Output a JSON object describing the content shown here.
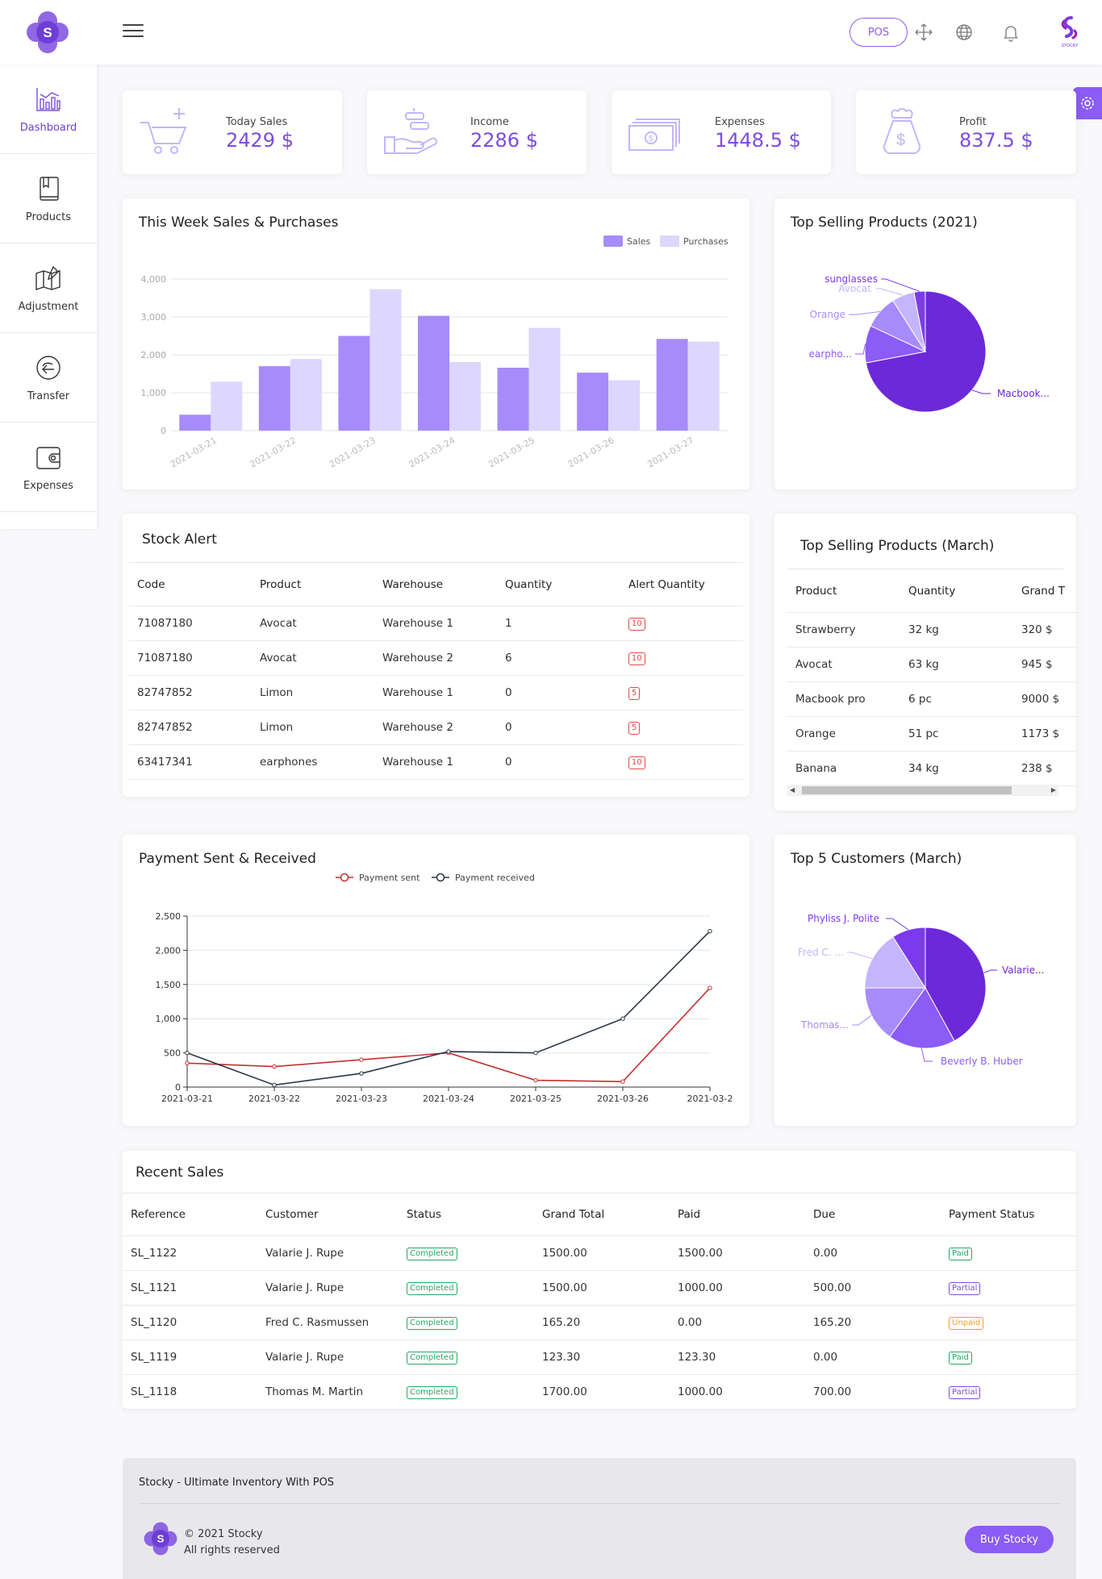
{
  "header": {
    "logo_letter": "S",
    "pos_label": "POS",
    "user_logo_text": "STOCKY"
  },
  "sidebar": {
    "items": [
      {
        "label": "Dashboard",
        "icon": "bar-chart-icon",
        "active": true
      },
      {
        "label": "Products",
        "icon": "book-icon",
        "active": false
      },
      {
        "label": "Adjustment",
        "icon": "map-pencil-icon",
        "active": false
      },
      {
        "label": "Transfer",
        "icon": "transfer-arrow-icon",
        "active": false
      },
      {
        "label": "Expenses",
        "icon": "wallet-icon",
        "active": false
      }
    ]
  },
  "stats": [
    {
      "label": "Today Sales",
      "value": "2429 $",
      "icon": "cart-icon"
    },
    {
      "label": "Income",
      "value": "2286 $",
      "icon": "hand-money-icon"
    },
    {
      "label": "Expenses",
      "value": "1448.5 $",
      "icon": "banknotes-icon"
    },
    {
      "label": "Profit",
      "value": "837.5 $",
      "icon": "money-bag-icon"
    }
  ],
  "week_sales": {
    "title": "This Week Sales & Purchases"
  },
  "top_selling_year": {
    "title": "Top Selling Products (2021)"
  },
  "stock_alert": {
    "title": "Stock Alert",
    "columns": [
      "Code",
      "Product",
      "Warehouse",
      "Quantity",
      "Alert Quantity"
    ],
    "rows": [
      [
        "71087180",
        "Avocat",
        "Warehouse 1",
        "1",
        "10"
      ],
      [
        "71087180",
        "Avocat",
        "Warehouse 2",
        "6",
        "10"
      ],
      [
        "82747852",
        "Limon",
        "Warehouse 1",
        "0",
        "5"
      ],
      [
        "82747852",
        "Limon",
        "Warehouse 2",
        "0",
        "5"
      ],
      [
        "63417341",
        "earphones",
        "Warehouse 1",
        "0",
        "10"
      ]
    ]
  },
  "top_selling_month": {
    "title": "Top Selling Products (March)",
    "columns": [
      "Product",
      "Quantity",
      "Grand T"
    ],
    "rows": [
      [
        "Strawberry",
        "32 kg",
        "320 $"
      ],
      [
        "Avocat",
        "63 kg",
        "945 $"
      ],
      [
        "Macbook pro",
        "6 pc",
        "9000 $"
      ],
      [
        "Orange",
        "51 pc",
        "1173 $"
      ],
      [
        "Banana",
        "34 kg",
        "238 $"
      ]
    ]
  },
  "payments": {
    "title": "Payment Sent & Received"
  },
  "top_customers": {
    "title": "Top 5 Customers (March)"
  },
  "recent_sales": {
    "title": "Recent Sales",
    "columns": [
      "Reference",
      "Customer",
      "Status",
      "Grand Total",
      "Paid",
      "Due",
      "Payment Status"
    ],
    "rows": [
      {
        "ref": "SL_1122",
        "customer": "Valarie J. Rupe",
        "status": "Completed",
        "total": "1500.00",
        "paid": "1500.00",
        "due": "0.00",
        "pstatus": "Paid"
      },
      {
        "ref": "SL_1121",
        "customer": "Valarie J. Rupe",
        "status": "Completed",
        "total": "1500.00",
        "paid": "1000.00",
        "due": "500.00",
        "pstatus": "Partial"
      },
      {
        "ref": "SL_1120",
        "customer": "Fred C. Rasmussen",
        "status": "Completed",
        "total": "165.20",
        "paid": "0.00",
        "due": "165.20",
        "pstatus": "Unpaid"
      },
      {
        "ref": "SL_1119",
        "customer": "Valarie J. Rupe",
        "status": "Completed",
        "total": "123.30",
        "paid": "123.30",
        "due": "0.00",
        "pstatus": "Paid"
      },
      {
        "ref": "SL_1118",
        "customer": "Thomas M. Martin",
        "status": "Completed",
        "total": "1700.00",
        "paid": "1000.00",
        "due": "700.00",
        "pstatus": "Partial"
      }
    ]
  },
  "footer": {
    "title": "Stocky - Ultimate Inventory With POS",
    "copyright": "© 2021 Stocky",
    "rights": "All rights reserved",
    "buy_label": "Buy Stocky"
  },
  "colors": {
    "accent": "#8b5cf6",
    "sales_bar": "#a78bfa",
    "purchases_bar": "#ddd6fe",
    "payment_sent": "#c53030",
    "payment_received": "#2d3748"
  },
  "chart_data": [
    {
      "type": "bar",
      "categories": [
        "2021-03-21",
        "2021-03-22",
        "2021-03-23",
        "2021-03-24",
        "2021-03-25",
        "2021-03-26",
        "2021-03-27"
      ],
      "series": [
        {
          "name": "Sales",
          "values": [
            420,
            1700,
            2500,
            3030,
            1660,
            1530,
            2420
          ]
        },
        {
          "name": "Purchases",
          "values": [
            1290,
            1890,
            3730,
            1810,
            2710,
            1330,
            2350
          ]
        }
      ],
      "yticks": [
        "0",
        "1,000",
        "2,000",
        "3,000",
        "4,000"
      ],
      "ylim": [
        0,
        4000
      ],
      "legend": "top-right",
      "grid": true
    },
    {
      "type": "pie",
      "labels": [
        "Macbook...",
        "earpho...",
        "Orange",
        "Avocat",
        "sunglasses"
      ],
      "values": [
        72,
        10,
        9,
        6,
        3
      ]
    },
    {
      "type": "line",
      "x": [
        "2021-03-21",
        "2021-03-22",
        "2021-03-23",
        "2021-03-24",
        "2021-03-25",
        "2021-03-26",
        "2021-03-2"
      ],
      "series": [
        {
          "name": "Payment sent",
          "values": [
            350,
            300,
            400,
            500,
            100,
            80,
            1450
          ]
        },
        {
          "name": "Payment received",
          "values": [
            500,
            30,
            200,
            520,
            500,
            1000,
            2280
          ]
        }
      ],
      "yticks": [
        "0",
        "500",
        "1,000",
        "1,500",
        "2,000",
        "2,500"
      ],
      "ylim": [
        0,
        2500
      ],
      "legend": "top-center",
      "grid": true
    },
    {
      "type": "pie",
      "labels": [
        "Valarie...",
        "Beverly B. Huber",
        "Thomas...",
        "Fred C. ...",
        "Phyliss J. Polite"
      ],
      "values": [
        42,
        18,
        15,
        16,
        9
      ]
    }
  ]
}
